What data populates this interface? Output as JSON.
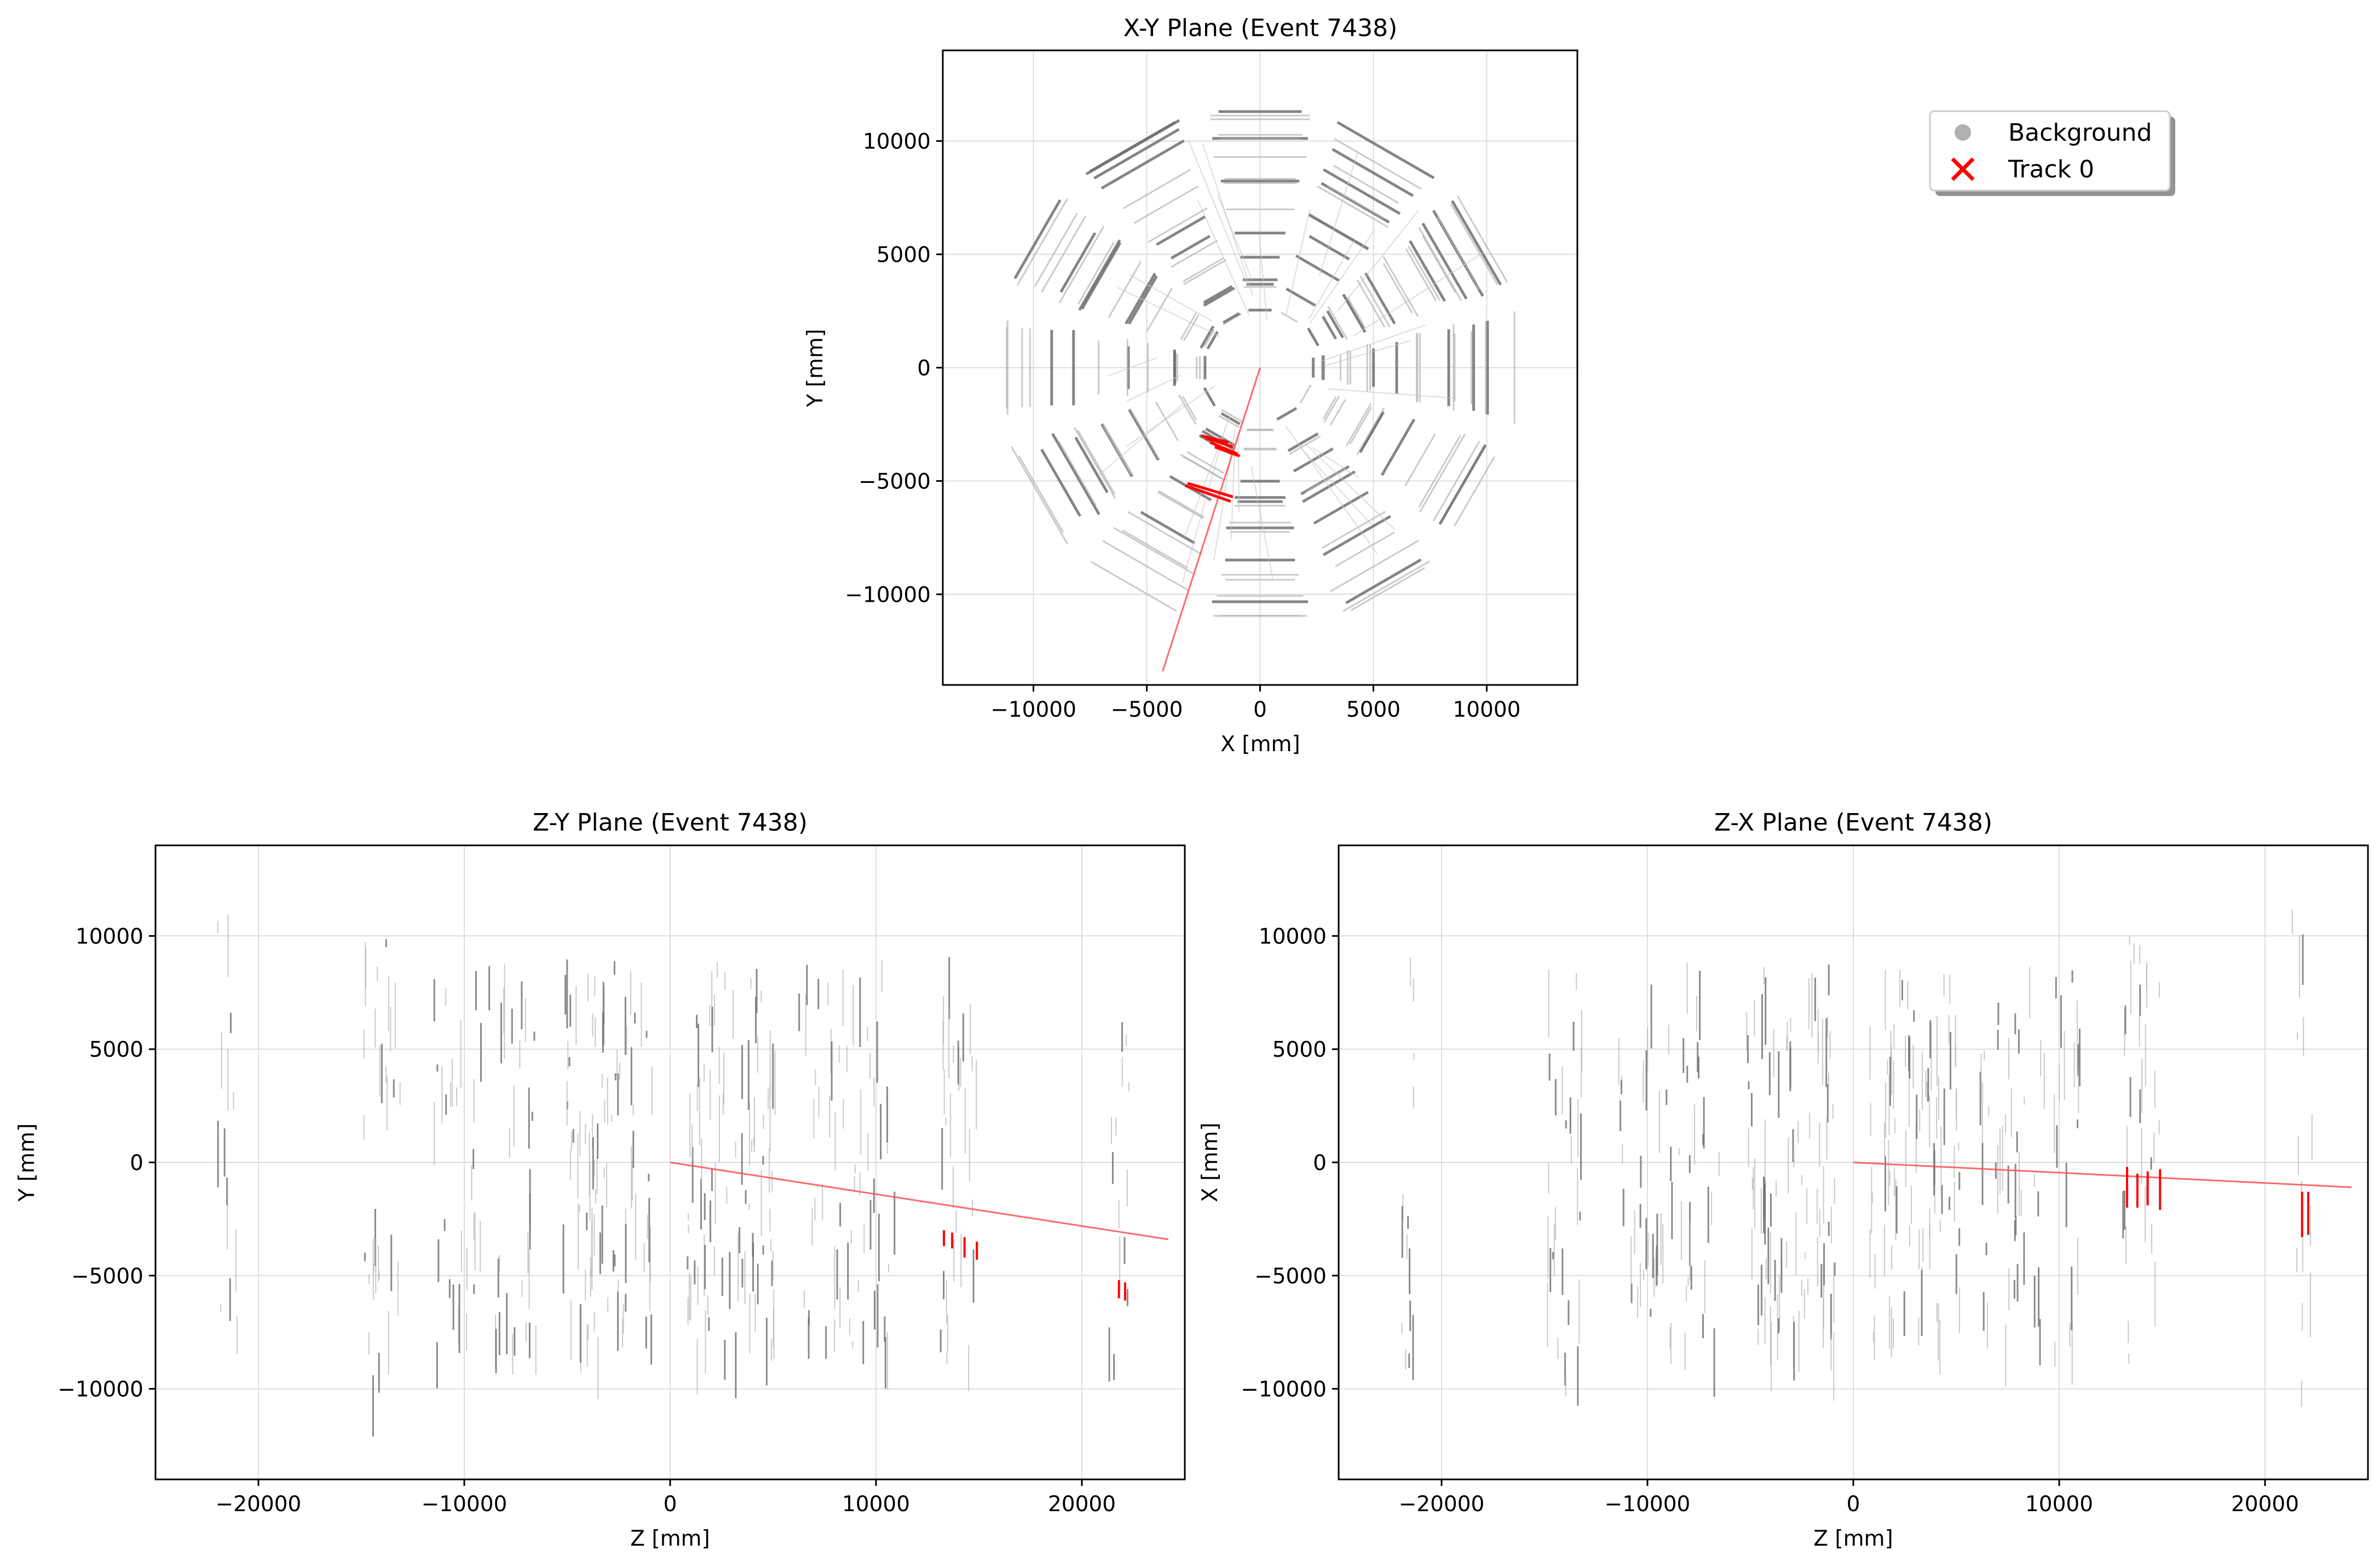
{
  "colors": {
    "background_hits": "#808080",
    "track_hits": "#ff0000",
    "track_line": "#ff5050",
    "grid": "#dddddd",
    "axes": "#000000"
  },
  "legend": {
    "placement": "upper-right",
    "entries": [
      {
        "label": "Background",
        "marker": "circle",
        "color": "#b0b0b0"
      },
      {
        "label": "Track 0",
        "marker": "x",
        "color": "#ff0000"
      }
    ]
  },
  "chart_data": [
    {
      "id": "xy",
      "type": "scatter",
      "title": "X-Y Plane (Event 7438)",
      "xlabel": "X [mm]",
      "ylabel": "Y [mm]",
      "xlim": [
        -14000,
        14000
      ],
      "ylim": [
        -14000,
        14000
      ],
      "xticks": [
        -10000,
        -5000,
        0,
        5000,
        10000
      ],
      "yticks": [
        -10000,
        -5000,
        0,
        5000,
        10000
      ],
      "grid": true,
      "background": {
        "shape": "concentric dodecagons",
        "radii": [
          2600,
          3800,
          5000,
          6000,
          7200,
          8500,
          9400,
          10400,
          11300
        ],
        "segments_per_ring": 12
      },
      "track_line": {
        "name": "Track 0",
        "x": [
          0,
          -4300
        ],
        "y": [
          0,
          -13400
        ]
      },
      "track_hits": [
        {
          "x": [
            -2400,
            -1200
          ],
          "y": [
            -3100,
            -3500
          ]
        },
        {
          "x": [
            -2200,
            -1000
          ],
          "y": [
            -3300,
            -3800
          ]
        },
        {
          "x": [
            -2600,
            -1400
          ],
          "y": [
            -3000,
            -3300
          ]
        },
        {
          "x": [
            -2000,
            -900
          ],
          "y": [
            -3500,
            -3900
          ]
        },
        {
          "x": [
            -3300,
            -1300
          ],
          "y": [
            -5200,
            -5900
          ]
        },
        {
          "x": [
            -3200,
            -1200
          ],
          "y": [
            -5100,
            -5700
          ]
        }
      ]
    },
    {
      "id": "zy",
      "type": "scatter",
      "title": "Z-Y Plane (Event 7438)",
      "xlabel": "Z [mm]",
      "ylabel": "Y [mm]",
      "xlim": [
        -25000,
        25000
      ],
      "ylim": [
        -14000,
        14000
      ],
      "xticks": [
        -20000,
        -10000,
        0,
        10000,
        20000
      ],
      "yticks": [
        -10000,
        -5000,
        0,
        5000,
        10000
      ],
      "grid": true,
      "track_line": {
        "name": "Track 0",
        "x": [
          0,
          24200
        ],
        "y": [
          0,
          -3400
        ]
      },
      "track_hits": [
        {
          "x": 13300,
          "y": [
            -3000,
            -3700
          ]
        },
        {
          "x": 13700,
          "y": [
            -3100,
            -3800
          ]
        },
        {
          "x": 14300,
          "y": [
            -3300,
            -4200
          ]
        },
        {
          "x": 14900,
          "y": [
            -3500,
            -4300
          ]
        },
        {
          "x": 21800,
          "y": [
            -5200,
            -6000
          ]
        },
        {
          "x": 22100,
          "y": [
            -5300,
            -6100
          ]
        }
      ]
    },
    {
      "id": "zx",
      "type": "scatter",
      "title": "Z-X Plane (Event 7438)",
      "xlabel": "Z [mm]",
      "ylabel": "X [mm]",
      "xlim": [
        -25000,
        25000
      ],
      "ylim": [
        -14000,
        14000
      ],
      "xticks": [
        -20000,
        -10000,
        0,
        10000,
        20000
      ],
      "yticks": [
        -10000,
        -5000,
        0,
        5000,
        10000
      ],
      "grid": true,
      "track_line": {
        "name": "Track 0",
        "x": [
          0,
          24200
        ],
        "y": [
          0,
          -1100
        ]
      },
      "track_hits": [
        {
          "x": 13300,
          "y": [
            -200,
            -2000
          ]
        },
        {
          "x": 13800,
          "y": [
            -500,
            -2000
          ]
        },
        {
          "x": 14300,
          "y": [
            -400,
            -1900
          ]
        },
        {
          "x": 14900,
          "y": [
            -300,
            -2100
          ]
        },
        {
          "x": 21800,
          "y": [
            -1300,
            -3300
          ]
        },
        {
          "x": 22100,
          "y": [
            -1300,
            -3200
          ]
        }
      ]
    }
  ]
}
